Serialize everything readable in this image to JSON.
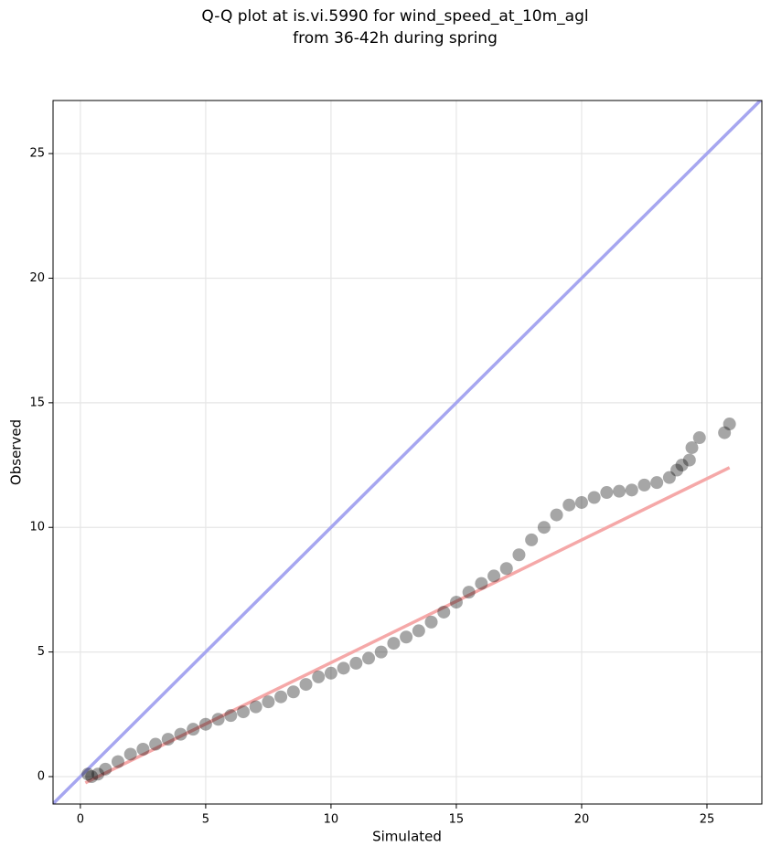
{
  "chart_data": {
    "type": "scatter",
    "title": [
      "Q-Q plot at is.vi.5990 for wind_speed_at_10m_agl",
      "from 36-42h during spring"
    ],
    "x_label": "Simulated",
    "y_label": "Observed",
    "xlim": [
      -1.09,
      27.19
    ],
    "ylim": [
      -1.1,
      27.13
    ],
    "xticks": [
      0,
      5,
      10,
      15,
      20,
      25
    ],
    "yticks": [
      0,
      5,
      10,
      15,
      20,
      25
    ],
    "grid": true,
    "x": [
      0.3,
      0.45,
      0.7,
      1.0,
      1.5,
      2,
      2.5,
      3,
      3.5,
      4,
      4.5,
      5,
      5.5,
      6,
      6.5,
      7,
      7.5,
      8,
      8.5,
      9,
      9.5,
      10,
      10.5,
      11,
      11.5,
      12,
      12.5,
      13,
      13.5,
      14,
      14.5,
      15,
      15.5,
      16,
      16.5,
      17,
      17.5,
      18,
      18.5,
      19,
      19.5,
      20,
      20.5,
      21,
      21.5,
      22,
      22.5,
      23,
      23.5,
      23.8,
      24,
      24.3,
      24.4,
      24.7,
      25.7,
      25.9
    ],
    "series": [
      {
        "color": "#000000",
        "alpha": 0.35,
        "values": [
          0.1,
          0.0,
          0.1,
          0.3,
          0.6,
          0.9,
          1.1,
          1.3,
          1.5,
          1.7,
          1.9,
          2.1,
          2.3,
          2.45,
          2.6,
          2.8,
          3.0,
          3.2,
          3.4,
          3.7,
          4.0,
          4.15,
          4.35,
          4.55,
          4.75,
          5.0,
          5.35,
          5.6,
          5.85,
          6.2,
          6.6,
          7.0,
          7.4,
          7.75,
          8.05,
          8.35,
          8.9,
          9.5,
          10.0,
          10.5,
          10.9,
          11.0,
          11.2,
          11.4,
          11.45,
          11.5,
          11.7,
          11.8,
          12.0,
          12.3,
          12.5,
          12.7,
          13.2,
          13.6,
          13.8,
          14.15
        ]
      }
    ],
    "reference_lines": [
      {
        "color": "#a6a6f0",
        "x": [
          -1.09,
          27.19
        ],
        "y": [
          -1.09,
          27.19
        ]
      },
      {
        "color": "#f5a8a8",
        "x": [
          0.2,
          25.9
        ],
        "y": [
          -0.25,
          12.4
        ]
      }
    ]
  }
}
